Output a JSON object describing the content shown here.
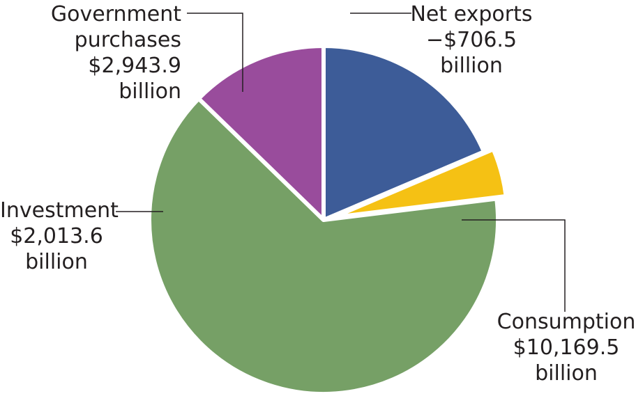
{
  "chart_data": {
    "type": "pie",
    "title": "",
    "colors": {
      "Government purchases": "#3d5c98",
      "Net exports": "#f5c114",
      "Consumption": "#76a066",
      "Investment": "#994c9c"
    },
    "slices": [
      {
        "name": "Government purchases",
        "value": 2943.9,
        "value_label": "$2,943.9",
        "unit_label": "billion",
        "exploded": false
      },
      {
        "name": "Net exports",
        "value": -706.5,
        "value_label": "−$706.5",
        "unit_label": "billion",
        "exploded": true
      },
      {
        "name": "Consumption",
        "value": 10169.5,
        "value_label": "$10,169.5",
        "unit_label": "billion",
        "exploded": false
      },
      {
        "name": "Investment",
        "value": 2013.6,
        "value_label": "$2,013.6",
        "unit_label": "billion",
        "exploded": false
      }
    ],
    "label_lines": {
      "Government purchases": [
        "Government",
        "purchases",
        "$2,943.9",
        "billion"
      ],
      "Net exports": [
        "Net exports",
        "−$706.5",
        "billion"
      ],
      "Consumption": [
        "Consumption",
        "$10,169.5",
        "billion"
      ],
      "Investment": [
        "Investment",
        "$2,013.6",
        "billion"
      ]
    }
  }
}
